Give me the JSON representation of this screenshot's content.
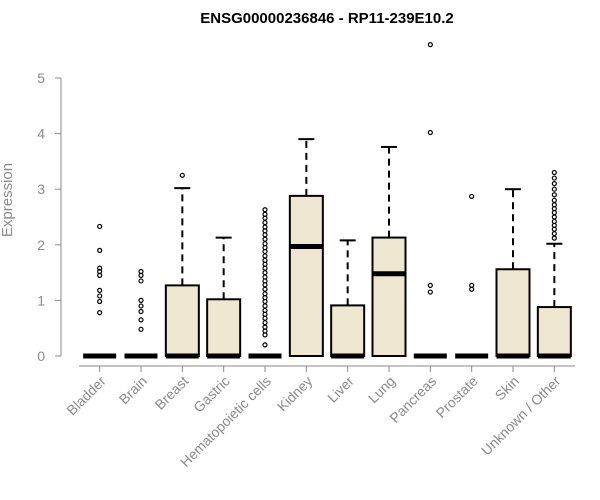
{
  "chart_data": {
    "type": "boxplot",
    "title": "ENSG00000236846 - RP11-239E10.2",
    "ylabel": "Expression",
    "xlabel": "",
    "ylim": [
      0,
      5.5
    ],
    "yticks": [
      0,
      1,
      2,
      3,
      4,
      5
    ],
    "box_fill": "#efe8d0",
    "categories": [
      "Bladder",
      "Brain",
      "Breast",
      "Gastric",
      "Hematopoietic cells",
      "Kidney",
      "Liver",
      "Lung",
      "Pancreas",
      "Prostate",
      "Skin",
      "Unknown / Other"
    ],
    "boxes": [
      {
        "category": "Bladder",
        "q1": 0,
        "median": 0,
        "q3": 0,
        "whisker_low": 0,
        "whisker_high": 0,
        "outliers": [
          2.33,
          1.9,
          1.58,
          1.52,
          1.45,
          1.18,
          1.08,
          0.98,
          0.78
        ]
      },
      {
        "category": "Brain",
        "q1": 0,
        "median": 0,
        "q3": 0,
        "whisker_low": 0,
        "whisker_high": 0,
        "outliers": [
          1.52,
          1.45,
          1.35,
          1.0,
          0.9,
          0.8,
          0.65,
          0.48
        ]
      },
      {
        "category": "Breast",
        "q1": 0,
        "median": 0,
        "q3": 1.27,
        "whisker_low": 0,
        "whisker_high": 3.02,
        "outliers": [
          3.25
        ]
      },
      {
        "category": "Gastric",
        "q1": 0,
        "median": 0,
        "q3": 1.02,
        "whisker_low": 0,
        "whisker_high": 2.13,
        "outliers": []
      },
      {
        "category": "Hematopoietic cells",
        "q1": 0,
        "median": 0,
        "q3": 0,
        "whisker_low": 0,
        "whisker_high": 0,
        "outliers": [
          2.63,
          2.55,
          2.48,
          2.4,
          2.32,
          2.25,
          2.18,
          2.1,
          2.02,
          1.95,
          1.88,
          1.8,
          1.72,
          1.65,
          1.58,
          1.5,
          1.42,
          1.35,
          1.28,
          1.2,
          1.12,
          1.05,
          0.98,
          0.9,
          0.82,
          0.75,
          0.68,
          0.6,
          0.52,
          0.45,
          0.38,
          0.2
        ]
      },
      {
        "category": "Kidney",
        "q1": 0,
        "median": 1.97,
        "q3": 2.88,
        "whisker_low": 0,
        "whisker_high": 3.9,
        "outliers": []
      },
      {
        "category": "Liver",
        "q1": 0,
        "median": 0,
        "q3": 0.91,
        "whisker_low": 0,
        "whisker_high": 2.08,
        "outliers": []
      },
      {
        "category": "Lung",
        "q1": 0,
        "median": 1.48,
        "q3": 2.13,
        "whisker_low": 0,
        "whisker_high": 3.76,
        "outliers": []
      },
      {
        "category": "Pancreas",
        "q1": 0,
        "median": 0,
        "q3": 0,
        "whisker_low": 0,
        "whisker_high": 0,
        "outliers": [
          5.6,
          4.02,
          1.27,
          1.15
        ]
      },
      {
        "category": "Prostate",
        "q1": 0,
        "median": 0,
        "q3": 0,
        "whisker_low": 0,
        "whisker_high": 0,
        "outliers": [
          2.87,
          1.27,
          1.2
        ]
      },
      {
        "category": "Skin",
        "q1": 0,
        "median": 0,
        "q3": 1.56,
        "whisker_low": 0,
        "whisker_high": 3.0,
        "outliers": []
      },
      {
        "category": "Unknown / Other",
        "q1": 0,
        "median": 0,
        "q3": 0.88,
        "whisker_low": 0,
        "whisker_high": 2.02,
        "outliers": [
          3.3,
          3.2,
          3.1,
          3.0,
          2.9,
          2.8,
          2.72,
          2.65,
          2.58,
          2.5,
          2.42,
          2.35,
          2.28,
          2.2,
          2.12
        ]
      }
    ]
  }
}
